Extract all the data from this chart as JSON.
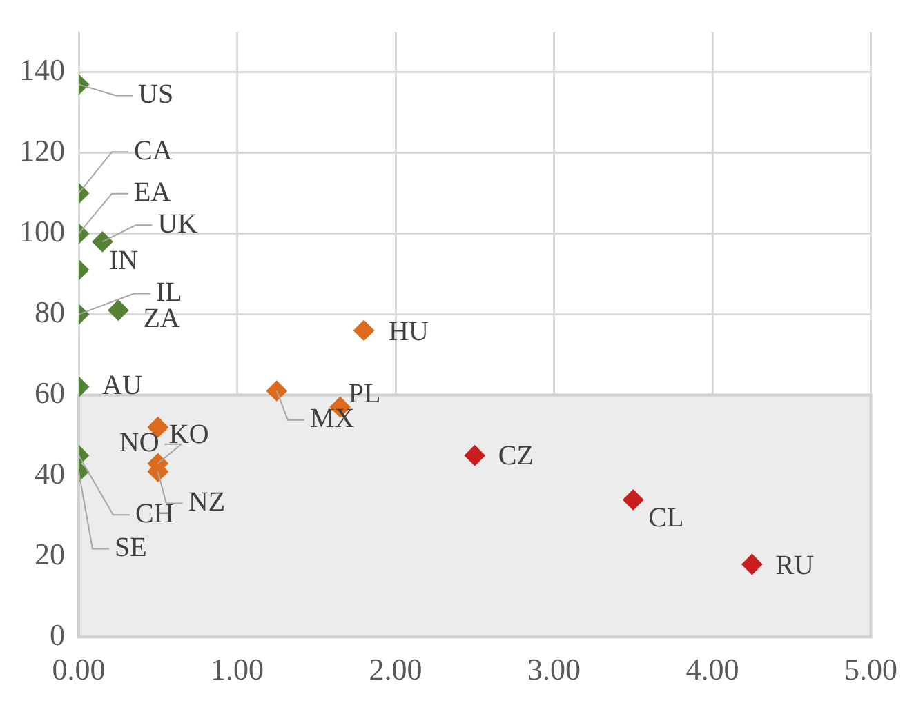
{
  "chart_data": {
    "type": "scatter",
    "xlim": [
      0,
      5
    ],
    "ylim": [
      0,
      150
    ],
    "xticks": [
      {
        "value": 0,
        "label": "0.00"
      },
      {
        "value": 1,
        "label": "1.00"
      },
      {
        "value": 2,
        "label": "2.00"
      },
      {
        "value": 3,
        "label": "3.00"
      },
      {
        "value": 4,
        "label": "4.00"
      },
      {
        "value": 5,
        "label": "5.00"
      }
    ],
    "yticks": [
      0,
      20,
      40,
      60,
      80,
      100,
      120,
      140
    ],
    "grid": true,
    "legend": false,
    "marker": "diamond",
    "series": [
      {
        "color": "#548235",
        "x": [
          0,
          0,
          0,
          0.15,
          0,
          0,
          0.25,
          0,
          0,
          0
        ],
        "values": [
          137,
          110,
          100,
          98,
          91,
          80,
          81,
          62,
          45,
          41
        ]
      },
      {
        "color": "#dd6b1d",
        "x": [
          1.8,
          1.25,
          1.65,
          0.5,
          0.5,
          0.5
        ],
        "values": [
          76,
          61,
          57,
          52,
          43,
          41
        ]
      },
      {
        "color": "#c81e1e",
        "x": [
          2.5,
          3.5,
          4.25
        ],
        "values": [
          45,
          34,
          18
        ]
      }
    ],
    "bands": [
      {
        "axis": "y",
        "from": 0,
        "to": 60,
        "color": "#ececec"
      }
    ],
    "annotations": [
      {
        "text": "US",
        "x": 0,
        "y": 137
      },
      {
        "text": "CA",
        "x": 0,
        "y": 110
      },
      {
        "text": "EA",
        "x": 0,
        "y": 100
      },
      {
        "text": "UK",
        "x": 0.15,
        "y": 98
      },
      {
        "text": "IN",
        "x": 0,
        "y": 91
      },
      {
        "text": "IL",
        "x": 0,
        "y": 80
      },
      {
        "text": "ZA",
        "x": 0.25,
        "y": 81
      },
      {
        "text": "HU",
        "x": 1.8,
        "y": 76
      },
      {
        "text": "AU",
        "x": 0,
        "y": 62
      },
      {
        "text": "MX",
        "x": 1.25,
        "y": 61
      },
      {
        "text": "PL",
        "x": 1.65,
        "y": 57
      },
      {
        "text": "KO",
        "x": 0.5,
        "y": 52
      },
      {
        "text": "NO",
        "x": 0.5,
        "y": 43
      },
      {
        "text": "NZ",
        "x": 0.5,
        "y": 41
      },
      {
        "text": "CH",
        "x": 0,
        "y": 45
      },
      {
        "text": "SE",
        "x": 0,
        "y": 41
      },
      {
        "text": "CZ",
        "x": 2.5,
        "y": 45
      },
      {
        "text": "CL",
        "x": 3.5,
        "y": 34
      },
      {
        "text": "RU",
        "x": 4.25,
        "y": 18
      }
    ]
  }
}
